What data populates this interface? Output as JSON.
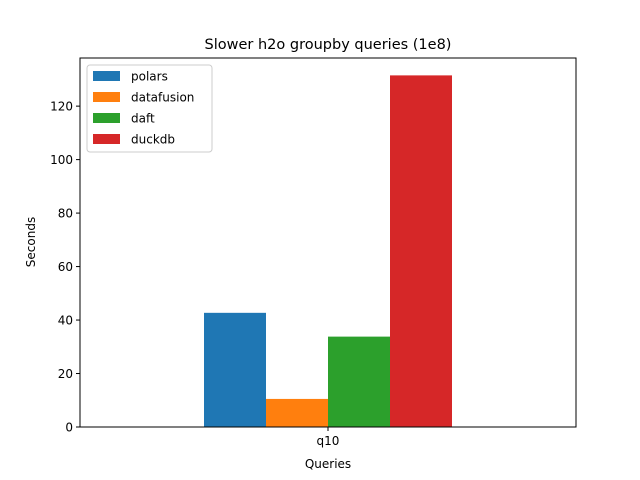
{
  "chart_data": {
    "type": "bar",
    "title": "Slower h2o groupby queries (1e8)",
    "xlabel": "Queries",
    "ylabel": "Seconds",
    "categories": [
      "q10"
    ],
    "series": [
      {
        "name": "polars",
        "values": [
          42.7
        ],
        "color": "#1f77b4"
      },
      {
        "name": "datafusion",
        "values": [
          10.5
        ],
        "color": "#ff7f0e"
      },
      {
        "name": "daft",
        "values": [
          33.8
        ],
        "color": "#2ca02c"
      },
      {
        "name": "duckdb",
        "values": [
          131.5
        ],
        "color": "#d62728"
      }
    ],
    "ylim": [
      0,
      138
    ],
    "yticks": [
      0,
      20,
      40,
      60,
      80,
      100,
      120
    ],
    "grid": false,
    "legend": "top-left"
  }
}
